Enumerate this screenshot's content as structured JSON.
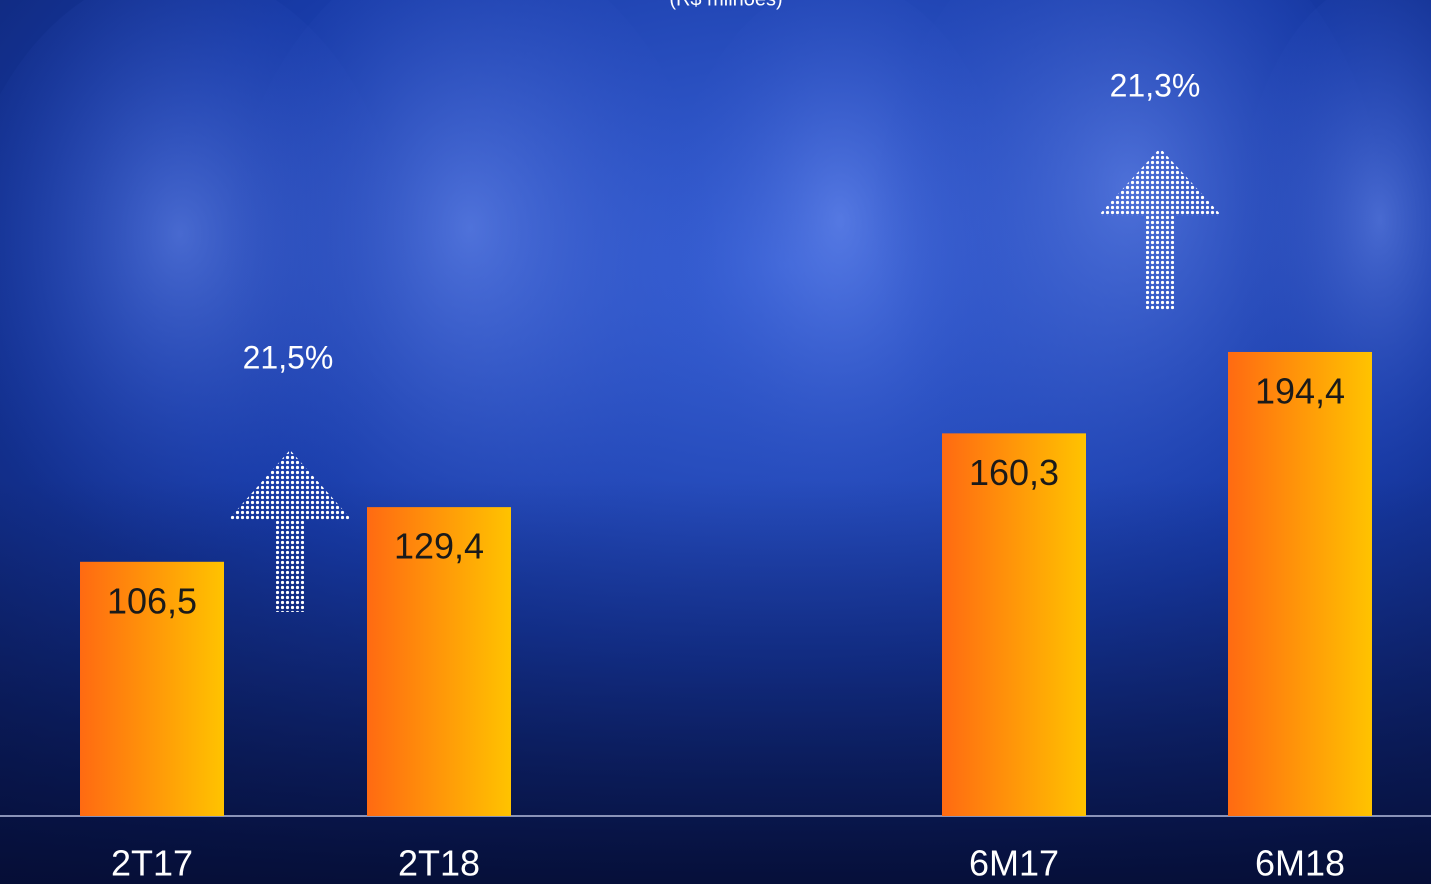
{
  "chart_data": {
    "type": "bar",
    "subtitle": "(R$ milhões)",
    "categories": [
      "2T17",
      "2T18",
      "6M17",
      "6M18"
    ],
    "values": [
      106.5,
      129.4,
      160.3,
      194.4
    ],
    "value_labels": [
      "106,5",
      "129,4",
      "160,3",
      "194,4"
    ],
    "gradient": [
      "#ff6a12",
      "#ffc300"
    ],
    "annotations": [
      "21,5%",
      "21,3%"
    ]
  }
}
